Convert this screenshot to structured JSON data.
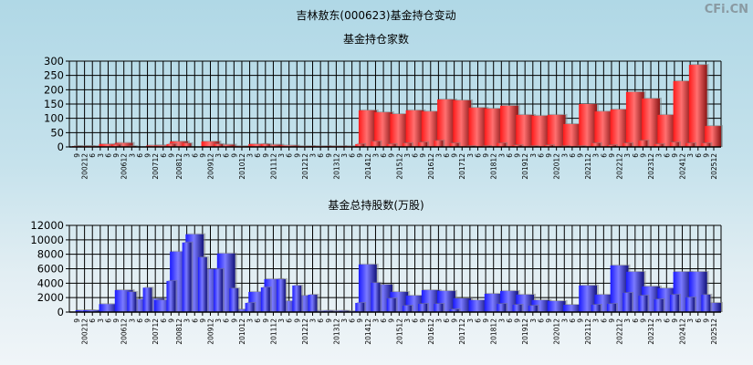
{
  "title": "吉林敖东(000623)基金持仓变动",
  "watermark": "CFi.CN",
  "colors": {
    "top_bar": "#ff2a2a",
    "bottom_bar": "#2a2aff",
    "grid": "#000000"
  },
  "categories": [
    "2002-09",
    "2002-12",
    "2003-06",
    "2006-03",
    "2006-06",
    "2006-09",
    "2006-12",
    "2007-03",
    "2007-06",
    "2007-09",
    "2007-12",
    "2008-06",
    "2008-09",
    "2008-12",
    "2009-03",
    "2009-06",
    "2009-09",
    "2009-12",
    "2010-03",
    "2010-06",
    "2010-09",
    "2010-12",
    "2011-03",
    "2011-06",
    "2011-09",
    "2011-12",
    "2012-03",
    "2012-06",
    "2012-09",
    "2012-12",
    "2013-03",
    "2013-06",
    "2013-09",
    "2013-12",
    "2014-03",
    "2014-06",
    "2014-09",
    "2014-12",
    "2015-03",
    "2015-06",
    "2015-09",
    "2015-12",
    "2016-03",
    "2016-06",
    "2016-09",
    "2016-12",
    "2017-03",
    "2017-06",
    "2017-09",
    "2017-12",
    "2018-03",
    "2018-06",
    "2018-09",
    "2018-12",
    "2019-03",
    "2019-06",
    "2019-09",
    "2019-12",
    "2020-03",
    "2020-06",
    "2020-09",
    "2020-12",
    "2021-03",
    "2021-06",
    "2021-09",
    "2021-12",
    "2022-03",
    "2022-06",
    "2022-09",
    "2022-12",
    "2023-03",
    "2023-06",
    "2023-09",
    "2023-12",
    "2024-03",
    "2024-06",
    "2024-09",
    "2024-12",
    "2025-03",
    "2025-06",
    "2025-09",
    "2025-12"
  ],
  "tick_labels": [
    "9",
    "200212",
    "6",
    "3",
    "6",
    "9",
    "200612",
    "3",
    "6",
    "9",
    "200712",
    "6",
    "9",
    "200812",
    "3",
    "6",
    "9",
    "200912",
    "3",
    "6",
    "9",
    "201012",
    "3",
    "6",
    "9",
    "201112",
    "3",
    "6",
    "9",
    "201212",
    "3",
    "6",
    "9",
    "201312",
    "3",
    "6",
    "9",
    "201412",
    "3",
    "6",
    "9",
    "201512",
    "3",
    "6",
    "9",
    "201612",
    "3",
    "6",
    "9",
    "201712",
    "3",
    "6",
    "9",
    "201812",
    "3",
    "6",
    "9",
    "201912",
    "3",
    "6",
    "9",
    "202012",
    "3",
    "6",
    "9",
    "202112",
    "3",
    "6",
    "9",
    "202212",
    "3",
    "6",
    "9",
    "202312",
    "3",
    "6",
    "9",
    "202412",
    "3",
    "6",
    "9",
    "202512"
  ],
  "chart_data": [
    {
      "type": "bar",
      "title": "基金持仓家数",
      "ylim": [
        0,
        300
      ],
      "yticks": [
        "0",
        "50",
        "100",
        "150",
        "200",
        "250",
        "300"
      ],
      "grid": true,
      "values": [
        {
          "period": "2002-09",
          "value": 3
        },
        {
          "period": "2002-12",
          "value": 3
        },
        {
          "period": "2003-06",
          "value": 3
        },
        {
          "period": "2006-06",
          "value": 10
        },
        {
          "period": "2006-09",
          "value": 8
        },
        {
          "period": "2006-12",
          "value": 14
        },
        {
          "period": "2007-03",
          "value": 3
        },
        {
          "period": "2007-12",
          "value": 5
        },
        {
          "period": "2008-06",
          "value": 5
        },
        {
          "period": "2008-09",
          "value": 10
        },
        {
          "period": "2008-12",
          "value": 19
        },
        {
          "period": "2009-03",
          "value": 13
        },
        {
          "period": "2009-12",
          "value": 19
        },
        {
          "period": "2010-03",
          "value": 10
        },
        {
          "period": "2010-06",
          "value": 8
        },
        {
          "period": "2010-12",
          "value": 3
        },
        {
          "period": "2011-06",
          "value": 10
        },
        {
          "period": "2011-09",
          "value": 10
        },
        {
          "period": "2011-12",
          "value": 8
        },
        {
          "period": "2012-06",
          "value": 5
        },
        {
          "period": "2012-12",
          "value": 3
        },
        {
          "period": "2013-06",
          "value": 3
        },
        {
          "period": "2013-12",
          "value": 3
        },
        {
          "period": "2014-06",
          "value": 3
        },
        {
          "period": "2014-09",
          "value": 10
        },
        {
          "period": "2014-12",
          "value": 128
        },
        {
          "period": "2015-03",
          "value": 19
        },
        {
          "period": "2015-06",
          "value": 121
        },
        {
          "period": "2015-09",
          "value": 10
        },
        {
          "period": "2015-12",
          "value": 115
        },
        {
          "period": "2016-03",
          "value": 13
        },
        {
          "period": "2016-06",
          "value": 128
        },
        {
          "period": "2016-09",
          "value": 16
        },
        {
          "period": "2016-12",
          "value": 124
        },
        {
          "period": "2017-03",
          "value": 22
        },
        {
          "period": "2017-06",
          "value": 166
        },
        {
          "period": "2017-09",
          "value": 13
        },
        {
          "period": "2017-12",
          "value": 163
        },
        {
          "period": "2018-03",
          "value": 3
        },
        {
          "period": "2018-06",
          "value": 137
        },
        {
          "period": "2018-09",
          "value": 3
        },
        {
          "period": "2018-12",
          "value": 134
        },
        {
          "period": "2019-03",
          "value": 13
        },
        {
          "period": "2019-06",
          "value": 144
        },
        {
          "period": "2019-09",
          "value": 6
        },
        {
          "period": "2019-12",
          "value": 112
        },
        {
          "period": "2020-03",
          "value": 3
        },
        {
          "period": "2020-06",
          "value": 109
        },
        {
          "period": "2020-09",
          "value": 6
        },
        {
          "period": "2020-12",
          "value": 112
        },
        {
          "period": "2021-03",
          "value": 3
        },
        {
          "period": "2021-06",
          "value": 80
        },
        {
          "period": "2021-09",
          "value": 3
        },
        {
          "period": "2021-12",
          "value": 150
        },
        {
          "period": "2022-03",
          "value": 13
        },
        {
          "period": "2022-06",
          "value": 124
        },
        {
          "period": "2022-09",
          "value": 6
        },
        {
          "period": "2022-12",
          "value": 131
        },
        {
          "period": "2023-03",
          "value": 13
        },
        {
          "period": "2023-06",
          "value": 192
        },
        {
          "period": "2023-09",
          "value": 22
        },
        {
          "period": "2023-12",
          "value": 169
        },
        {
          "period": "2024-03",
          "value": 10
        },
        {
          "period": "2024-06",
          "value": 112
        },
        {
          "period": "2024-09",
          "value": 16
        },
        {
          "period": "2024-12",
          "value": 230
        },
        {
          "period": "2025-03",
          "value": 13
        },
        {
          "period": "2025-06",
          "value": 287
        },
        {
          "period": "2025-09",
          "value": 13
        },
        {
          "period": "2025-12",
          "value": 73
        }
      ]
    },
    {
      "type": "bar",
      "title": "基金总持股数(万股)",
      "ylim": [
        0,
        12000
      ],
      "yticks": [
        "0",
        "2000",
        "4000",
        "6000",
        "8000",
        "10000",
        "12000"
      ],
      "grid": true,
      "values": [
        {
          "period": "2002-12",
          "value": 250
        },
        {
          "period": "2003-06",
          "value": 250
        },
        {
          "period": "2006-06",
          "value": 1100
        },
        {
          "period": "2006-12",
          "value": 3040
        },
        {
          "period": "2007-03",
          "value": 2790
        },
        {
          "period": "2007-06",
          "value": 1780
        },
        {
          "period": "2007-09",
          "value": 3380
        },
        {
          "period": "2007-12",
          "value": 1860
        },
        {
          "period": "2008-06",
          "value": 1650
        },
        {
          "period": "2008-09",
          "value": 4310
        },
        {
          "period": "2008-12",
          "value": 8370
        },
        {
          "period": "2009-03",
          "value": 9630
        },
        {
          "period": "2009-06",
          "value": 10770
        },
        {
          "period": "2009-09",
          "value": 7600
        },
        {
          "period": "2009-12",
          "value": 5960
        },
        {
          "period": "2010-03",
          "value": 5960
        },
        {
          "period": "2010-06",
          "value": 8110
        },
        {
          "period": "2010-09",
          "value": 3300
        },
        {
          "period": "2010-12",
          "value": 380
        },
        {
          "period": "2011-03",
          "value": 1270
        },
        {
          "period": "2011-06",
          "value": 2790
        },
        {
          "period": "2011-09",
          "value": 3420
        },
        {
          "period": "2011-12",
          "value": 4560
        },
        {
          "period": "2012-03",
          "value": 4560
        },
        {
          "period": "2012-06",
          "value": 1520
        },
        {
          "period": "2012-09",
          "value": 3680
        },
        {
          "period": "2012-12",
          "value": 2280
        },
        {
          "period": "2013-03",
          "value": 2410
        },
        {
          "period": "2013-06",
          "value": 170
        },
        {
          "period": "2013-09",
          "value": 170
        },
        {
          "period": "2013-12",
          "value": 170
        },
        {
          "period": "2014-03",
          "value": 170
        },
        {
          "period": "2014-06",
          "value": 130
        },
        {
          "period": "2014-09",
          "value": 1270
        },
        {
          "period": "2014-12",
          "value": 6590
        },
        {
          "period": "2015-03",
          "value": 4060
        },
        {
          "period": "2015-06",
          "value": 3800
        },
        {
          "period": "2015-09",
          "value": 1900
        },
        {
          "period": "2015-12",
          "value": 2790
        },
        {
          "period": "2016-03",
          "value": 890
        },
        {
          "period": "2016-06",
          "value": 2280
        },
        {
          "period": "2016-09",
          "value": 1140
        },
        {
          "period": "2016-12",
          "value": 3040
        },
        {
          "period": "2017-03",
          "value": 1140
        },
        {
          "period": "2017-06",
          "value": 2920
        },
        {
          "period": "2017-09",
          "value": 380
        },
        {
          "period": "2017-12",
          "value": 1900
        },
        {
          "period": "2018-06",
          "value": 1650
        },
        {
          "period": "2018-12",
          "value": 2535
        },
        {
          "period": "2019-03",
          "value": 1140
        },
        {
          "period": "2019-06",
          "value": 2920
        },
        {
          "period": "2019-09",
          "value": 1010
        },
        {
          "period": "2019-12",
          "value": 2410
        },
        {
          "period": "2020-03",
          "value": 890
        },
        {
          "period": "2020-06",
          "value": 1650
        },
        {
          "period": "2020-12",
          "value": 1520
        },
        {
          "period": "2021-06",
          "value": 1010
        },
        {
          "period": "2021-12",
          "value": 3680
        },
        {
          "period": "2022-03",
          "value": 1010
        },
        {
          "period": "2022-06",
          "value": 2410
        },
        {
          "period": "2022-09",
          "value": 1140
        },
        {
          "period": "2022-12",
          "value": 6460
        },
        {
          "period": "2023-03",
          "value": 2660
        },
        {
          "period": "2023-06",
          "value": 5580
        },
        {
          "period": "2023-09",
          "value": 2280
        },
        {
          "period": "2023-12",
          "value": 3550
        },
        {
          "period": "2024-03",
          "value": 1770
        },
        {
          "period": "2024-06",
          "value": 3300
        },
        {
          "period": "2024-09",
          "value": 2410
        },
        {
          "period": "2024-12",
          "value": 5580
        },
        {
          "period": "2025-03",
          "value": 2030
        },
        {
          "period": "2025-06",
          "value": 5580
        },
        {
          "period": "2025-09",
          "value": 2410
        },
        {
          "period": "2025-12",
          "value": 1270
        }
      ]
    }
  ]
}
